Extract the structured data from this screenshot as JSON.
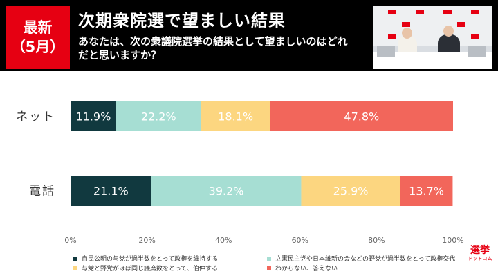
{
  "header": {
    "badge_line1": "最新",
    "badge_line2": "（5月）",
    "title": "次期衆院選で望ましい結果",
    "question": "あなたは、次の衆議院選挙の結果として望ましいのはどれだと思いますか？"
  },
  "colors": {
    "header_bg": "#000000",
    "badge": "#e60012",
    "series": [
      "#11393f",
      "#a6ded3",
      "#fcd680",
      "#f2665b"
    ]
  },
  "chart_data": {
    "type": "bar",
    "orientation": "horizontal",
    "stacked": true,
    "categories": [
      "ネット",
      "電話"
    ],
    "series": [
      {
        "name": "自民公明の与党が過半数をとって政権を維持する",
        "values": [
          11.9,
          21.1
        ],
        "value_labels": [
          "11.9%",
          "21.1%"
        ]
      },
      {
        "name": "立憲民主党や日本維新の会などの野党が過半数をとって政権交代",
        "values": [
          22.2,
          39.2
        ],
        "value_labels": [
          "22.2%",
          "39.2%"
        ]
      },
      {
        "name": "与党と野党がほぼ同じ議席数をとって、伯仲する",
        "values": [
          18.1,
          25.9
        ],
        "value_labels": [
          "18.1%",
          "25.9%"
        ]
      },
      {
        "name": "わからない、答えない",
        "values": [
          47.8,
          13.7
        ],
        "value_labels": [
          "47.8%",
          "13.7%"
        ]
      }
    ],
    "xlim": [
      0,
      100
    ],
    "ticks": [
      "0%",
      "20%",
      "40%",
      "60%",
      "80%",
      "100%"
    ],
    "legend_position": "bottom",
    "grid": false
  },
  "logo": {
    "main": "選挙",
    "sub": "ドットコム"
  }
}
